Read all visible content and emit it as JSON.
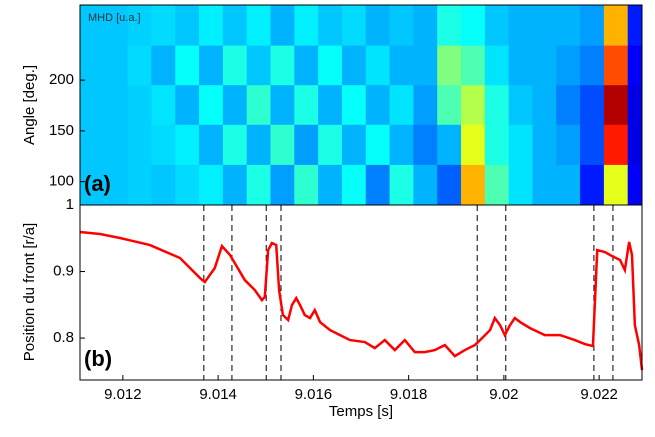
{
  "chart_data": [
    {
      "type": "heatmap",
      "title": "MHD [u.a.]",
      "annotation": "(a)",
      "ylabel": "Angle [deg.]",
      "x": [
        9.01135,
        9.01185,
        9.01235,
        9.01285,
        9.01335,
        9.01385,
        9.01435,
        9.01485,
        9.01535,
        9.01585,
        9.01635,
        9.01685,
        9.01735,
        9.01785,
        9.01835,
        9.01885,
        9.01935,
        9.01985,
        9.02035,
        9.02085,
        9.02135,
        9.02185,
        9.02235,
        9.02285
      ],
      "y": [
        97,
        137,
        176,
        215,
        254
      ],
      "z": [
        [
          0.32,
          0.32,
          0.33,
          0.32,
          0.34,
          0.36,
          0.3,
          0.4,
          0.28,
          0.42,
          0.3,
          0.38,
          0.25,
          0.4,
          0.3,
          0.22,
          0.7,
          0.45,
          0.35,
          0.3,
          0.3,
          0.15,
          0.6,
          0.12
        ],
        [
          0.32,
          0.32,
          0.33,
          0.34,
          0.36,
          0.3,
          0.4,
          0.3,
          0.42,
          0.28,
          0.4,
          0.3,
          0.38,
          0.3,
          0.25,
          0.3,
          0.6,
          0.4,
          0.35,
          0.3,
          0.28,
          0.2,
          0.85,
          0.1
        ],
        [
          0.32,
          0.32,
          0.33,
          0.35,
          0.3,
          0.38,
          0.3,
          0.42,
          0.3,
          0.4,
          0.3,
          0.38,
          0.3,
          0.35,
          0.28,
          0.45,
          0.55,
          0.4,
          0.32,
          0.3,
          0.25,
          0.2,
          0.95,
          0.1
        ],
        [
          0.32,
          0.32,
          0.34,
          0.3,
          0.38,
          0.3,
          0.4,
          0.32,
          0.4,
          0.3,
          0.38,
          0.3,
          0.35,
          0.3,
          0.3,
          0.5,
          0.45,
          0.35,
          0.3,
          0.3,
          0.28,
          0.25,
          0.8,
          0.12
        ],
        [
          0.32,
          0.32,
          0.33,
          0.34,
          0.32,
          0.36,
          0.32,
          0.36,
          0.3,
          0.36,
          0.32,
          0.34,
          0.3,
          0.32,
          0.3,
          0.4,
          0.38,
          0.32,
          0.3,
          0.3,
          0.3,
          0.28,
          0.7,
          0.15
        ]
      ],
      "zlim": [
        0,
        1
      ],
      "colormap": "jet",
      "xlim": [
        9.0111,
        9.0229
      ],
      "ylim": [
        77,
        274
      ],
      "yticks": [
        100,
        150,
        200
      ]
    },
    {
      "type": "line",
      "annotation": "(b)",
      "ylabel": "Position du front [r/a]",
      "xlabel": "Temps [s]",
      "color": "#ff0000",
      "x": [
        9.0111,
        9.01152,
        9.01194,
        9.01257,
        9.0132,
        9.01362,
        9.01372,
        9.01393,
        9.01408,
        9.01425,
        9.01456,
        9.01477,
        9.01492,
        9.01498,
        9.01505,
        9.01513,
        9.01522,
        9.01528,
        9.01536,
        9.01547,
        9.01555,
        9.01564,
        9.01572,
        9.01582,
        9.01593,
        9.01603,
        9.01614,
        9.01635,
        9.01656,
        9.01677,
        9.01708,
        9.01729,
        9.0175,
        9.01771,
        9.01792,
        9.01813,
        9.01834,
        9.01855,
        9.01876,
        9.01897,
        9.01918,
        9.01939,
        9.0195,
        9.01971,
        9.01981,
        9.01992,
        9.02002,
        9.02013,
        9.02023,
        9.02034,
        9.02055,
        9.02086,
        9.02118,
        9.02149,
        9.0217,
        9.02187,
        9.02196,
        9.02212,
        9.02227,
        9.02244,
        9.02254,
        9.02263,
        9.02269,
        9.02275,
        9.02284,
        9.0229
      ],
      "values": [
        0.9594,
        0.9564,
        0.9504,
        0.9398,
        0.9203,
        0.8902,
        0.8842,
        0.9053,
        0.9383,
        0.9248,
        0.8872,
        0.8722,
        0.8571,
        0.8617,
        0.9323,
        0.9429,
        0.9398,
        0.8722,
        0.8346,
        0.8271,
        0.8496,
        0.8601,
        0.8496,
        0.8346,
        0.8301,
        0.8421,
        0.8241,
        0.812,
        0.8045,
        0.797,
        0.794,
        0.785,
        0.797,
        0.782,
        0.797,
        0.7789,
        0.7789,
        0.782,
        0.7895,
        0.7729,
        0.782,
        0.7895,
        0.797,
        0.812,
        0.8301,
        0.8195,
        0.8045,
        0.8195,
        0.8301,
        0.8241,
        0.815,
        0.8045,
        0.8045,
        0.797,
        0.791,
        0.788,
        0.9323,
        0.9293,
        0.9233,
        0.9173,
        0.9023,
        0.9444,
        0.9248,
        0.8195,
        0.7895,
        0.7519
      ],
      "vlines": [
        9.0137,
        9.01429,
        9.01501,
        9.01532,
        9.01944,
        9.02004,
        9.02189,
        9.02229
      ],
      "xlim": [
        9.0111,
        9.0229
      ],
      "ylim": [
        0.737,
        1.0
      ],
      "xticks": [
        9.012,
        9.014,
        9.016,
        9.018,
        9.02,
        9.022
      ],
      "yticks": [
        0.8,
        0.9,
        1
      ]
    }
  ]
}
